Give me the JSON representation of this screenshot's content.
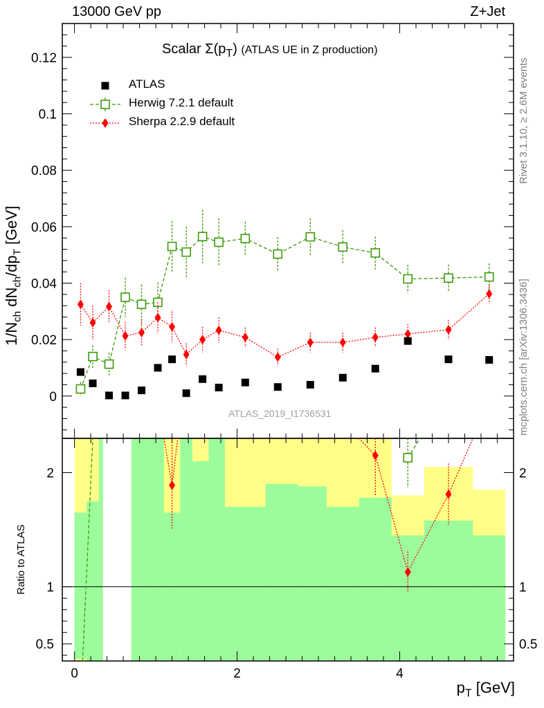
{
  "header": {
    "left": "13000 GeV pp",
    "right": "Z+Jet"
  },
  "title": {
    "main": "Scalar Σ(p",
    "sub": "T",
    "close": ")",
    "suffix": "(ATLAS UE in Z production)"
  },
  "watermark": "ATLAS_2019_I1736531",
  "side_labels": {
    "rivet": "Rivet 3.1.10, ≥ 2.6M events",
    "mcplots": "mcplots.cern.ch [arXiv:1306.3436]"
  },
  "axes": {
    "y_title": "1/N",
    "y_title_ch1": "ch",
    "y_title_mid": " dN",
    "y_title_ch2": "ch",
    "y_title_dp": "/dp",
    "y_title_T": "T",
    "y_title_unit": " [GeV]",
    "x_title": "p",
    "x_title_sub": "T",
    "x_title_unit": " [GeV]",
    "ratio_title": "Ratio to ATLAS"
  },
  "legend": [
    {
      "label": "ATLAS",
      "color": "#000000",
      "marker": "filled-square"
    },
    {
      "label": "Herwig 7.2.1 default",
      "color": "#3a9a0a",
      "marker": "open-square"
    },
    {
      "label": "Sherpa 2.2.9 default",
      "color": "#ff0000",
      "marker": "filled-diamond"
    }
  ],
  "chart_data": [
    {
      "type": "scatter",
      "panel": "main",
      "title": "Scalar Σ(pT) (ATLAS UE in Z production)",
      "xlabel": "pT [GeV]",
      "ylabel": "1/Nch dNch/dpT [GeV]",
      "xlim": [
        -0.15,
        5.4
      ],
      "ylim": [
        -0.015,
        0.132
      ],
      "x_ticks": [
        0,
        2,
        4
      ],
      "y_ticks": [
        0,
        0.02,
        0.04,
        0.06,
        0.08,
        0.1,
        0.12
      ],
      "y_tick_labels": [
        "0",
        "0.02",
        "0.04",
        "0.06",
        "0.08",
        "0.1",
        "0.12"
      ],
      "x": [
        0.075,
        0.225,
        0.425,
        0.625,
        0.825,
        1.025,
        1.2,
        1.375,
        1.575,
        1.775,
        2.1,
        2.5,
        2.9,
        3.3,
        3.7,
        4.1,
        4.6,
        5.1
      ],
      "series": [
        {
          "name": "ATLAS",
          "color": "#000000",
          "values": [
            0.0085,
            0.0045,
            0.0002,
            0.0002,
            0.002,
            0.01,
            0.013,
            0.001,
            0.006,
            0.003,
            0.0048,
            0.0032,
            0.004,
            0.0065,
            0.0097,
            0.0195,
            0.013,
            0.0128
          ]
        },
        {
          "name": "Herwig 7.2.1 default",
          "color": "#3a9a0a",
          "values": [
            0.0025,
            0.014,
            0.0113,
            0.035,
            0.0325,
            0.0332,
            0.053,
            0.051,
            0.0565,
            0.0545,
            0.0558,
            0.0503,
            0.0564,
            0.0528,
            0.0507,
            0.0415,
            0.0418,
            0.0422
          ],
          "errors": [
            0.0025,
            0.004,
            0.004,
            0.007,
            0.007,
            0.007,
            0.009,
            0.009,
            0.0095,
            0.0085,
            0.006,
            0.006,
            0.0065,
            0.006,
            0.0058,
            0.005,
            0.0048,
            0.0048
          ]
        },
        {
          "name": "Sherpa 2.2.9 default",
          "color": "#ff0000",
          "values": [
            0.0325,
            0.026,
            0.0317,
            0.0213,
            0.0225,
            0.0278,
            0.0245,
            0.0147,
            0.02,
            0.0233,
            0.0208,
            0.0138,
            0.019,
            0.019,
            0.0208,
            0.022,
            0.0235,
            0.0362
          ],
          "errors": [
            0.0075,
            0.006,
            0.0058,
            0.005,
            0.0048,
            0.0055,
            0.0055,
            0.004,
            0.0045,
            0.0045,
            0.0035,
            0.003,
            0.0035,
            0.0035,
            0.0035,
            0.0035,
            0.0035,
            0.0035
          ]
        }
      ]
    },
    {
      "type": "scatter",
      "panel": "ratio",
      "ylabel": "Ratio to ATLAS",
      "xlim": [
        -0.15,
        5.4
      ],
      "ylim": [
        0.35,
        2.3
      ],
      "y_ticks": [
        0.5,
        1,
        2
      ],
      "y_tick_labels": [
        "0.5",
        "1",
        "2"
      ],
      "x_tick_labels": [
        "0",
        "2",
        "4"
      ],
      "bands": {
        "edges": [
          0.0,
          0.15,
          0.3,
          0.35,
          0.7,
          0.9,
          1.1,
          1.3,
          1.45,
          1.65,
          1.85,
          2.35,
          2.75,
          3.1,
          3.5,
          3.9,
          4.3,
          4.9,
          5.3
        ],
        "yellow_low": [
          0.35,
          0.35,
          0.35,
          null,
          0.35,
          0.35,
          0.47,
          0.35,
          0.35,
          0.35,
          0.38,
          0.35,
          0.35,
          0.43,
          0.35,
          0.67,
          0.48,
          0.65
        ],
        "yellow_high": [
          2.3,
          2.3,
          2.3,
          null,
          2.3,
          2.3,
          2.3,
          2.3,
          2.3,
          2.3,
          2.3,
          2.3,
          2.3,
          2.3,
          2.3,
          1.8,
          2.05,
          1.85
        ],
        "green_low": [
          0.37,
          0.35,
          0.35,
          null,
          0.35,
          0.35,
          0.35,
          0.35,
          0.35,
          0.35,
          0.35,
          0.35,
          0.35,
          0.35,
          0.35,
          0.35,
          0.35,
          0.35
        ],
        "green_high": [
          1.65,
          1.75,
          2.3,
          null,
          2.3,
          2.3,
          1.65,
          2.3,
          2.1,
          2.3,
          1.7,
          1.9,
          1.88,
          1.7,
          1.78,
          1.45,
          1.58,
          1.45
        ]
      },
      "series": [
        {
          "name": "Herwig 7.2.1 default",
          "color": "#3a9a0a",
          "points": [
            {
              "x": 4.1,
              "y": 2.13,
              "err": 0.26
            }
          ],
          "line": [
            [
              0.1,
              0.35
            ],
            [
              0.225,
              2.3
            ]
          ],
          "line_tail": [
            [
              4.1,
              2.13
            ],
            [
              4.25,
              2.3
            ]
          ]
        },
        {
          "name": "Sherpa 2.2.9 default",
          "color": "#ff0000",
          "points": [
            {
              "x": 1.2,
              "y": 1.89,
              "err": 0.38
            },
            {
              "x": 3.7,
              "y": 2.15,
              "err": 0.36
            },
            {
              "x": 4.1,
              "y": 1.13,
              "err": 0.18
            },
            {
              "x": 4.6,
              "y": 1.81,
              "err": 0.27
            }
          ],
          "line_segments": [
            [
              [
                1.1,
                2.3
              ],
              [
                1.2,
                1.89
              ],
              [
                1.27,
                2.3
              ]
            ],
            [
              [
                3.5,
                2.3
              ],
              [
                3.7,
                2.15
              ],
              [
                4.1,
                1.13
              ],
              [
                4.6,
                1.81
              ],
              [
                4.9,
                2.3
              ]
            ]
          ]
        }
      ]
    }
  ]
}
